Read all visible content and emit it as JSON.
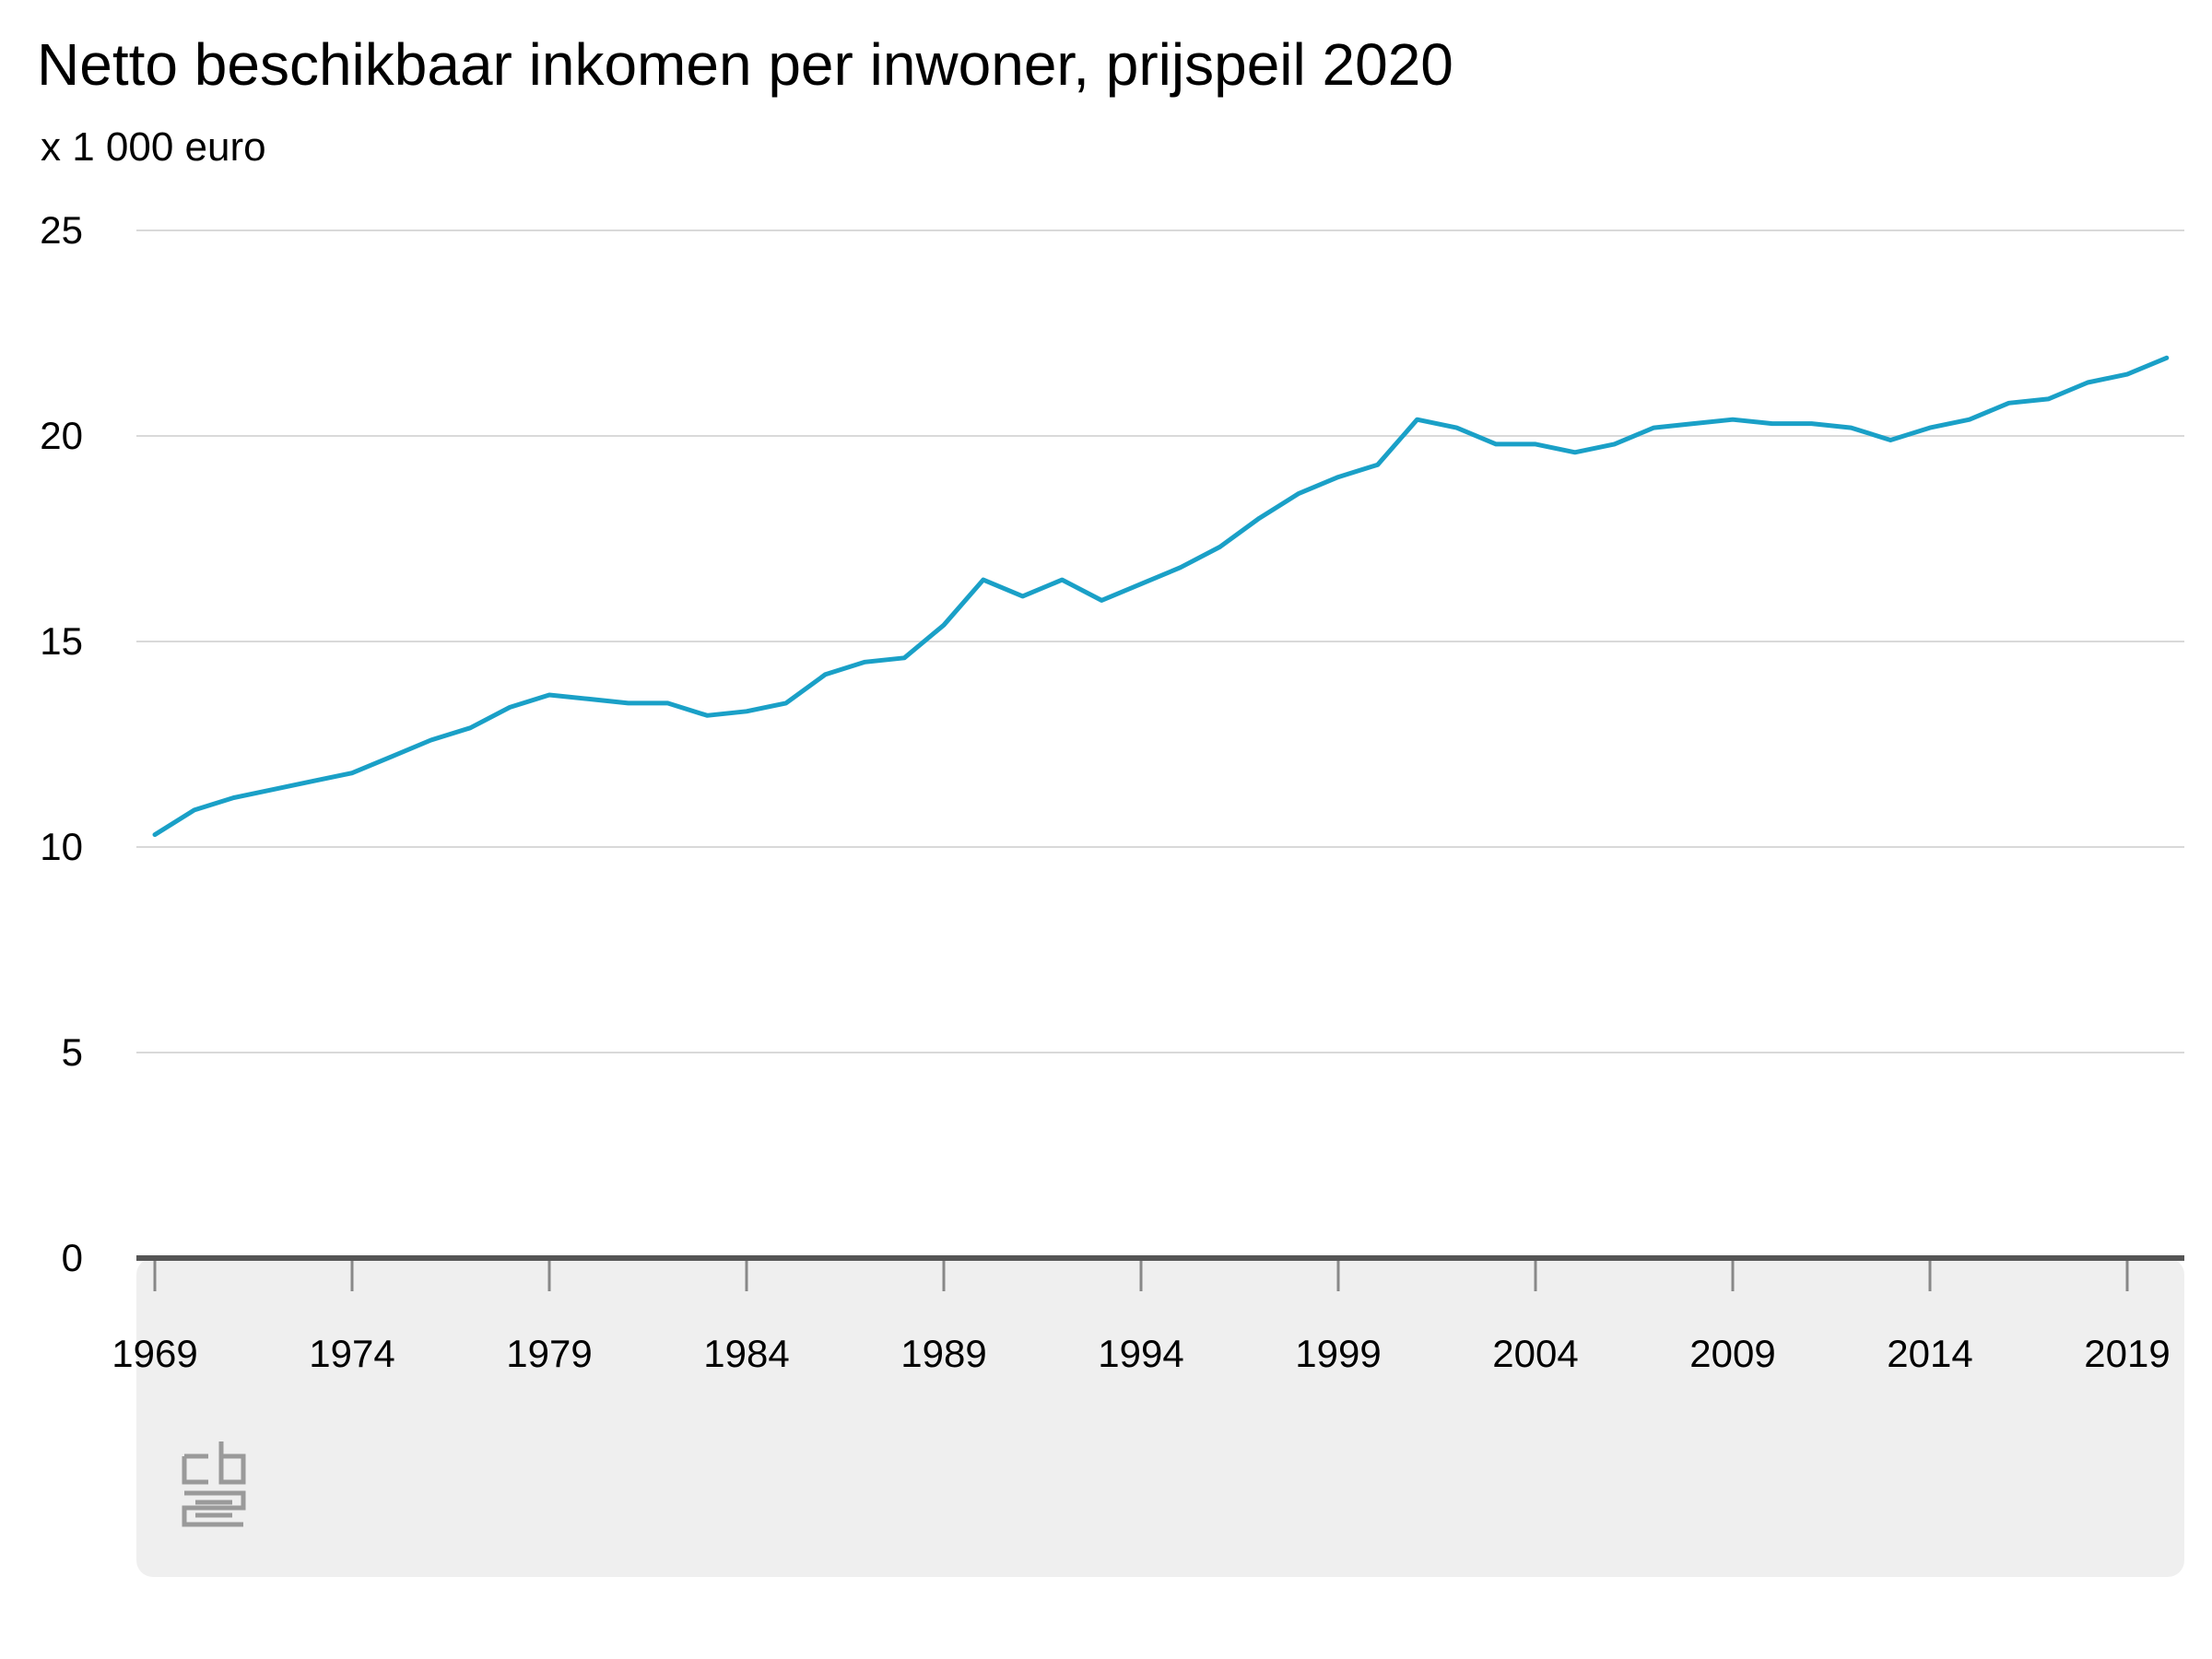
{
  "chart_data": {
    "type": "line",
    "title": "Netto beschikbaar inkomen per inwoner, prijspeil 2020",
    "unit_label": "x 1 000 euro",
    "xlabel": "",
    "ylabel": "",
    "ylim": [
      0,
      25
    ],
    "yticks": [
      0,
      5,
      10,
      15,
      20,
      25
    ],
    "xlim": [
      1969,
      2020
    ],
    "xticks": [
      1969,
      1974,
      1979,
      1984,
      1989,
      1994,
      1999,
      2004,
      2009,
      2014,
      2019
    ],
    "grid": true,
    "legend": "none",
    "colors": {
      "line": "#1aa0c7",
      "grid": "#d9d9d9",
      "axis": "#555555",
      "footer": "#efefef",
      "logo": "#9a9a9a"
    },
    "logo_name": "cbs-logo",
    "series": [
      {
        "x": [
          1969,
          1970,
          1971,
          1972,
          1973,
          1974,
          1975,
          1976,
          1977,
          1978,
          1979,
          1980,
          1981,
          1982,
          1983,
          1984,
          1985,
          1986,
          1987,
          1988,
          1989,
          1990,
          1991,
          1992,
          1993,
          1994,
          1995,
          1996,
          1997,
          1998,
          1999,
          2000,
          2001,
          2002,
          2003,
          2004,
          2005,
          2006,
          2007,
          2008,
          2009,
          2010,
          2011,
          2012,
          2013,
          2014,
          2015,
          2016,
          2017,
          2018,
          2019,
          2020
        ],
        "values": [
          10.3,
          10.9,
          11.2,
          11.4,
          11.6,
          11.8,
          12.2,
          12.6,
          12.9,
          13.4,
          13.7,
          13.6,
          13.5,
          13.5,
          13.2,
          13.3,
          13.5,
          14.2,
          14.5,
          14.6,
          15.4,
          16.5,
          16.1,
          16.5,
          16.0,
          16.4,
          16.8,
          17.3,
          18.0,
          18.6,
          19.0,
          19.3,
          20.4,
          20.2,
          19.8,
          19.8,
          19.6,
          19.8,
          20.2,
          20.3,
          20.4,
          20.3,
          20.3,
          20.2,
          19.9,
          20.2,
          20.4,
          20.8,
          20.9,
          21.3,
          21.5,
          21.9
        ]
      }
    ]
  }
}
